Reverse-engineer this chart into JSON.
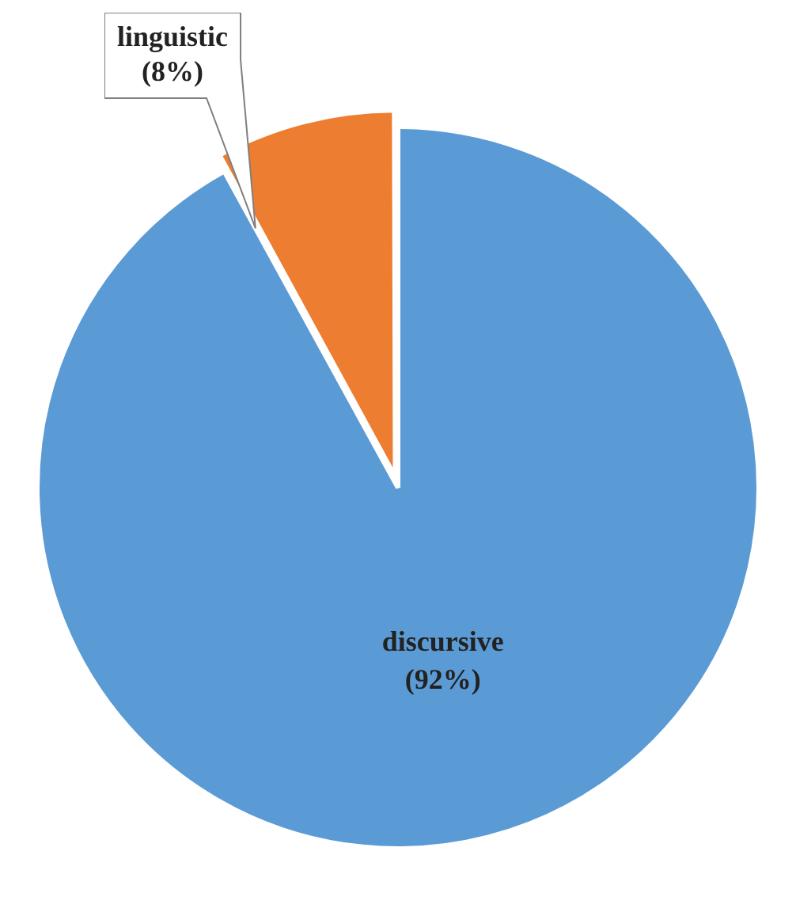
{
  "chart_data": {
    "type": "pie",
    "categories": [
      "discursive",
      "linguistic"
    ],
    "values": [
      92,
      8
    ],
    "colors": [
      "#5b9bd5",
      "#ed7d31"
    ],
    "value_labels": [
      "(92%)",
      "(8%)"
    ],
    "legend": false
  }
}
